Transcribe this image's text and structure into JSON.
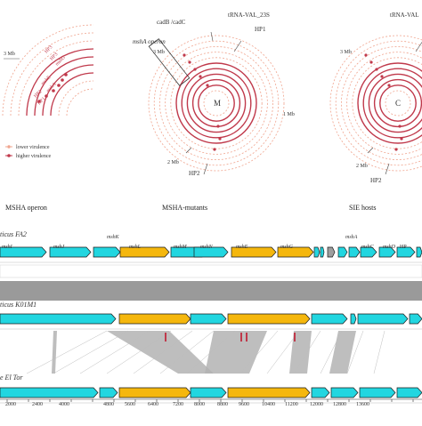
{
  "panels": {
    "left": {
      "title": "MSHA operon",
      "mb_label": "3 Mb",
      "rotated_labels": [
        "HP3",
        "HP3",
        "mshG",
        "mshE",
        "mshA",
        "HP2",
        "HP1"
      ]
    },
    "middle": {
      "title": "MSHA-mutants",
      "center": "M",
      "annotations": {
        "cadb": "cadB /cadC",
        "trna": "tRNA-VAL_23S",
        "hp1": "HP1",
        "msha_operon": "mshA operon",
        "mb3": "3 Mb",
        "mb1": "1 Mb",
        "mb2": "2 Mb",
        "hp2": "HP2"
      }
    },
    "right": {
      "title": "SIE hosts",
      "center": "C",
      "annotations": {
        "trna": "tRNA-VAL",
        "mb3": "3 Mb",
        "mb2": "2 Mb",
        "hp2": "HP2"
      }
    }
  },
  "legend": {
    "lower": "lower virulence",
    "higher": "higher virulence",
    "colors": {
      "lower": "#f0a48e",
      "higher": "#c0394b"
    }
  },
  "tracks": [
    {
      "label": "ticus FA2",
      "genes": [
        {
          "name": "mshI",
          "color": "#22d6e0"
        },
        {
          "name": "mshJ",
          "color": "#22d6e0"
        },
        {
          "name": "mshK",
          "color": "#22d6e0"
        },
        {
          "name": "mshL",
          "color": "#f5b70d"
        },
        {
          "name": "mshM",
          "color": "#22d6e0"
        },
        {
          "name": "mshN",
          "color": "#22d6e0"
        },
        {
          "name": "mshE",
          "color": "#f5b70d"
        },
        {
          "name": "mshG",
          "color": "#f5b70d"
        },
        {
          "name": "mshA",
          "color": "#22d6e0"
        },
        {
          "name": "mshC",
          "color": "#22d6e0"
        },
        {
          "name": "mshD",
          "color": "#22d6e0"
        },
        {
          "name": "HP",
          "color": "#22d6e0"
        }
      ]
    },
    {
      "label": "ticus K01M1"
    },
    {
      "label": "e El Tor"
    }
  ],
  "scale": {
    "ticks": [
      "2000",
      "2400",
      "4000",
      "4800",
      "5600",
      "6400",
      "7200",
      "8000",
      "8800",
      "9600",
      "10400",
      "11200",
      "12000",
      "12800",
      "13600"
    ]
  },
  "colors": {
    "cyan": "#22d6e0",
    "gold": "#f5b70d",
    "ring_dark": "#c0394b",
    "ring_light": "#f0a48e",
    "grey": "#9e9e9e"
  }
}
